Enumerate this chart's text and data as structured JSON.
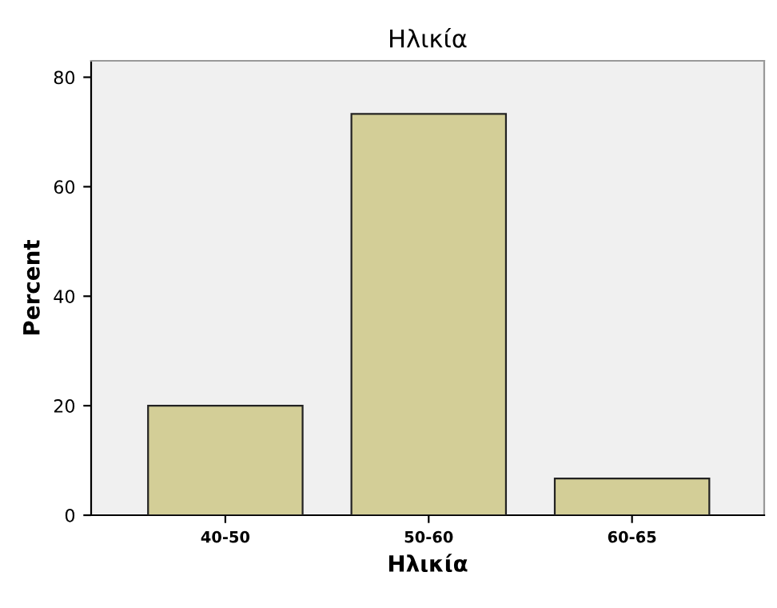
{
  "chart_data": {
    "type": "bar",
    "title": "Ηλικία",
    "xlabel": "Ηλικία",
    "ylabel": "Percent",
    "categories": [
      "40-50",
      "50-60",
      "60-65"
    ],
    "values": [
      20,
      73.3,
      6.7
    ],
    "color": "#d3ce97",
    "ylim": [
      0,
      83
    ],
    "yticks": [
      0,
      20,
      40,
      60,
      80
    ],
    "grid": false
  }
}
